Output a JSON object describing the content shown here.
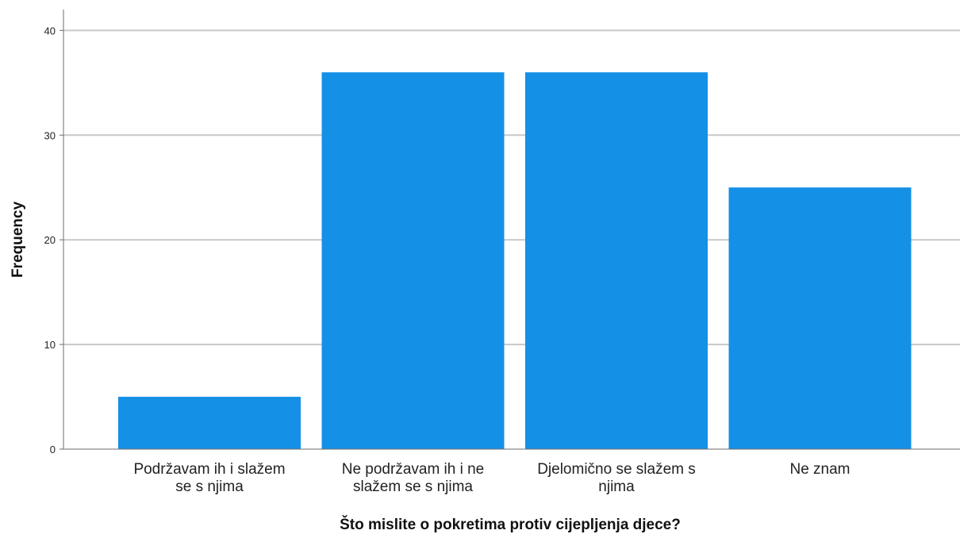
{
  "chart_data": {
    "type": "bar",
    "categories": [
      [
        "Podržavam ih i slažem",
        "se s njima"
      ],
      [
        "Ne podržavam ih i ne",
        "slažem se s njima"
      ],
      [
        "Djelomično se slažem s",
        "njima"
      ],
      [
        "Ne znam"
      ]
    ],
    "values": [
      5,
      36,
      36,
      25
    ],
    "title": "",
    "xlabel": "Što mislite o pokretima protiv cijepljenja djece?",
    "ylabel": "Frequency",
    "ylim": [
      0,
      42
    ],
    "yticks": [
      0,
      10,
      20,
      30,
      40
    ],
    "grid": true,
    "bar_color": "#1490E6",
    "grid_color": "#C8C8C8",
    "axis_color": "#6E6E6E"
  }
}
